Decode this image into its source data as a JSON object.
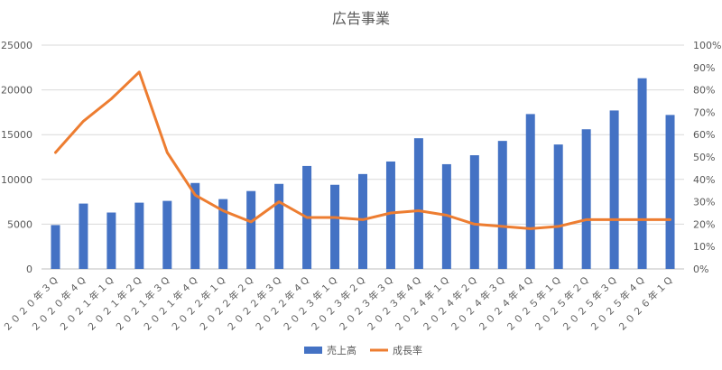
{
  "chart_data": {
    "type": "bar",
    "title": "広告事業",
    "categories": [
      "２０２０年３Q",
      "２０２０年４Q",
      "２０２１年１Q",
      "２０２１年２Q",
      "２０２１年３Q",
      "２０２１年４Q",
      "２０２２年１Q",
      "２０２２年２Q",
      "２０２２年３Q",
      "２０２２年４Q",
      "２０２３年１Q",
      "２０２３年２Q",
      "２０２３年３Q",
      "２０２３年４Q",
      "２０２４年１Q",
      "２０２４年２Q",
      "２０２４年３Q",
      "２０２４年４Q",
      "２０２５年１Q",
      "２０２５年２Q",
      "２０２５年３Q",
      "２０２５年４Q",
      "２０２６年１Q"
    ],
    "series": [
      {
        "name": "売上高",
        "type": "bar",
        "axis": "left",
        "color": "#4472C4",
        "values": [
          4900,
          7300,
          6300,
          7400,
          7600,
          9600,
          7800,
          8700,
          9500,
          11500,
          9400,
          10600,
          12000,
          14600,
          11700,
          12700,
          14300,
          17300,
          13900,
          15600,
          17700,
          21300,
          17200
        ]
      },
      {
        "name": "成長率",
        "type": "line",
        "axis": "right",
        "color": "#ED7D31",
        "values": [
          52,
          66,
          76,
          88,
          52,
          33,
          26,
          21,
          30,
          23,
          23,
          22,
          25,
          26,
          24,
          20,
          19,
          18,
          19,
          22,
          22,
          22,
          22
        ]
      }
    ],
    "left_axis": {
      "min": 0,
      "max": 25000,
      "step": 5000,
      "tick_labels": [
        "0",
        "5000",
        "10000",
        "15000",
        "20000",
        "25000"
      ]
    },
    "right_axis": {
      "min": 0,
      "max": 100,
      "step": 10,
      "tick_labels": [
        "0%",
        "10%",
        "20%",
        "30%",
        "40%",
        "50%",
        "60%",
        "70%",
        "80%",
        "90%",
        "100%"
      ]
    },
    "grid": true,
    "legend_position": "bottom",
    "legend": [
      {
        "name": "売上高",
        "marker": "square",
        "color": "#4472C4"
      },
      {
        "name": "成長率",
        "marker": "line",
        "color": "#ED7D31"
      }
    ]
  }
}
